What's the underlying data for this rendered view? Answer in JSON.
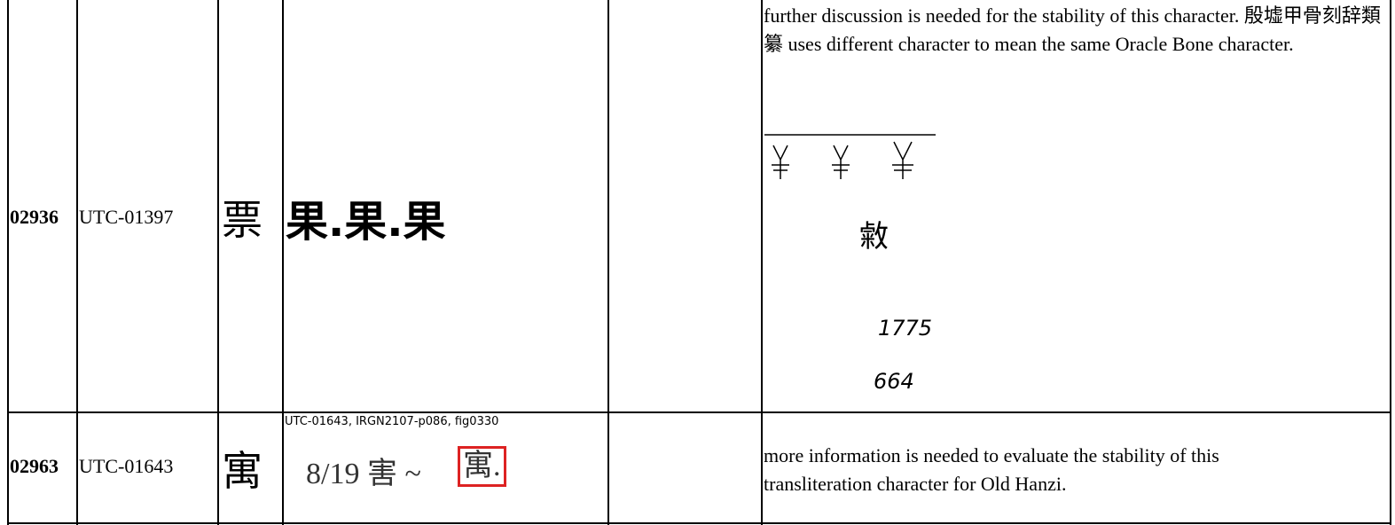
{
  "table": {
    "rows": [
      {
        "id": "02936",
        "source": "UTC-01397",
        "glyph": "票",
        "evidence": "果.果.果",
        "comment": "further discussion is needed for the stability of this character. 殷墟甲骨刻辞類纂  uses different character to mean the same Oracle Bone character.",
        "figure": {
          "glyph": "敹",
          "refs": [
            "1775",
            "664"
          ]
        }
      },
      {
        "id": "02963",
        "source": "UTC-01643",
        "glyph": "寓",
        "evidence_caption": "UTC-01643, IRGN2107-p086, fig0330",
        "evidence": "8/19 害 ~",
        "evidence_glyph": "寓.",
        "comment": "more information is needed to evaluate the stability of this transliteration character for Old Hanzi."
      }
    ]
  }
}
